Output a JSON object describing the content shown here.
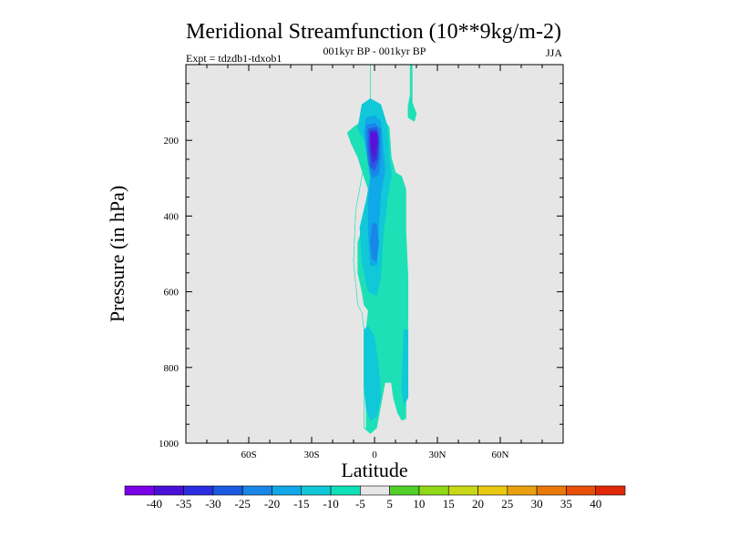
{
  "chart_data": {
    "type": "heatmap",
    "title": "Meridional Streamfunction (10**9kg/m-2)",
    "subtitle": "001kyr BP - 001kyr BP",
    "left_label": "Expt = tdzdb1-tdxob1",
    "right_label": "JJA",
    "xlabel": "Latitude",
    "ylabel": "Pressure (in hPa)",
    "xlim": [
      -90,
      90
    ],
    "ylim": [
      1000,
      0
    ],
    "x_ticks": [
      {
        "value": -60,
        "label": "60S"
      },
      {
        "value": -30,
        "label": "30S"
      },
      {
        "value": 0,
        "label": "0"
      },
      {
        "value": 30,
        "label": "30N"
      },
      {
        "value": 60,
        "label": "60N"
      }
    ],
    "y_ticks": [
      {
        "value": 200,
        "label": "200"
      },
      {
        "value": 400,
        "label": "400"
      },
      {
        "value": 600,
        "label": "600"
      },
      {
        "value": 800,
        "label": "800"
      },
      {
        "value": 1000,
        "label": "1000"
      }
    ],
    "background_color": "#e6e6e6",
    "colorbar": {
      "levels": [
        -40,
        -35,
        -30,
        -25,
        -20,
        -15,
        -10,
        -5,
        5,
        10,
        15,
        20,
        25,
        30,
        35,
        40
      ],
      "labels": [
        "-40",
        "-35",
        "-30",
        "-25",
        "-20",
        "-15",
        "-10",
        "-5",
        "5",
        "10",
        "15",
        "20",
        "25",
        "30",
        "35",
        "40"
      ],
      "colors": [
        "#7a00e8",
        "#4b10d8",
        "#2a2ee0",
        "#1a5ae0",
        "#1a86e8",
        "#10a8e8",
        "#10c8d8",
        "#10e0b8",
        "#e6e6e6",
        "#50d028",
        "#90d818",
        "#c8d818",
        "#e8c810",
        "#e8a010",
        "#e87808",
        "#e85008",
        "#e02808"
      ]
    },
    "regions": [
      {
        "name": "tropical-tongue",
        "level": "-10 to -5",
        "color": "#1de0b6",
        "polygon": [
          [
            -8,
            0
          ],
          [
            -2,
            0
          ],
          [
            -2,
            165
          ],
          [
            -4,
            235
          ],
          [
            -9,
            385
          ],
          [
            -10,
            520
          ],
          [
            -8,
            635
          ],
          [
            -6,
            655
          ],
          [
            -5,
            700
          ],
          [
            -5,
            960
          ],
          [
            -2,
            975
          ],
          [
            1,
            960
          ],
          [
            3,
            900
          ],
          [
            5,
            840
          ],
          [
            8,
            840
          ],
          [
            9,
            880
          ],
          [
            11,
            920
          ],
          [
            13,
            940
          ],
          [
            15,
            935
          ],
          [
            15,
            830
          ],
          [
            16,
            680
          ],
          [
            16,
            560
          ],
          [
            15,
            440
          ],
          [
            15,
            330
          ],
          [
            13,
            295
          ],
          [
            10,
            285
          ],
          [
            8,
            245
          ],
          [
            7,
            165
          ],
          [
            5,
            150
          ],
          [
            2,
            140
          ],
          [
            -2,
            145
          ],
          [
            -6,
            150
          ],
          [
            -10,
            165
          ],
          [
            -13,
            180
          ],
          [
            -11,
            210
          ],
          [
            -8,
            245
          ],
          [
            -6,
            280
          ],
          [
            -3,
            330
          ],
          [
            -1,
            360
          ],
          [
            -3,
            400
          ],
          [
            -6,
            435
          ],
          [
            -8,
            470
          ],
          [
            -8,
            550
          ],
          [
            -6,
            600
          ],
          [
            -5,
            635
          ],
          [
            -3,
            650
          ],
          [
            -4,
            700
          ],
          [
            -4,
            960
          ],
          [
            -5,
            960
          ],
          [
            -5,
            700
          ],
          [
            -6,
            655
          ],
          [
            -8,
            635
          ],
          [
            -10,
            520
          ],
          [
            -9,
            385
          ],
          [
            -4,
            235
          ],
          [
            -2,
            165
          ],
          [
            -2,
            0
          ]
        ]
      },
      {
        "name": "northern-thin-band",
        "level": "-10 to -5",
        "color": "#1de0b6",
        "polygon": [
          [
            17,
            0
          ],
          [
            18,
            0
          ],
          [
            18,
            100
          ],
          [
            20,
            130
          ],
          [
            19,
            150
          ],
          [
            16,
            140
          ],
          [
            16,
            110
          ],
          [
            17,
            80
          ]
        ]
      },
      {
        "name": "upper-cell-outer",
        "level": "-15 to -10",
        "color": "#10c8d8",
        "polygon": [
          [
            -6,
            105
          ],
          [
            -2,
            90
          ],
          [
            3,
            105
          ],
          [
            6,
            160
          ],
          [
            7,
            240
          ],
          [
            8,
            290
          ],
          [
            6,
            360
          ],
          [
            4,
            460
          ],
          [
            3,
            560
          ],
          [
            1,
            610
          ],
          [
            -3,
            600
          ],
          [
            -6,
            520
          ],
          [
            -7,
            430
          ],
          [
            -4,
            360
          ],
          [
            -2,
            300
          ],
          [
            -3,
            260
          ],
          [
            -5,
            200
          ],
          [
            -8,
            170
          ]
        ]
      },
      {
        "name": "lower-cell-outer",
        "level": "-15 to -10",
        "color": "#10c8d8",
        "polygon": [
          [
            -5,
            700
          ],
          [
            -3,
            690
          ],
          [
            0,
            720
          ],
          [
            2,
            800
          ],
          [
            3,
            880
          ],
          [
            1,
            930
          ],
          [
            -2,
            940
          ],
          [
            -4,
            910
          ],
          [
            -5,
            850
          ]
        ]
      },
      {
        "name": "north-lower-cell",
        "level": "-15 to -10",
        "color": "#10c8d8",
        "polygon": [
          [
            14,
            700
          ],
          [
            16,
            700
          ],
          [
            16,
            880
          ],
          [
            14,
            900
          ],
          [
            13,
            860
          ]
        ]
      },
      {
        "name": "upper-cell-mid",
        "level": "-20 to -15",
        "color": "#10a8e8",
        "polygon": [
          [
            -4,
            140
          ],
          [
            0,
            135
          ],
          [
            3,
            150
          ],
          [
            4,
            210
          ],
          [
            5,
            280
          ],
          [
            3,
            340
          ],
          [
            2,
            430
          ],
          [
            1,
            530
          ],
          [
            -2,
            530
          ],
          [
            -3,
            440
          ],
          [
            -3,
            360
          ],
          [
            -2,
            300
          ],
          [
            -3,
            240
          ],
          [
            -5,
            180
          ]
        ]
      },
      {
        "name": "upper-cell-inner",
        "level": "-25 to -20",
        "color": "#1a86e8",
        "polygon": [
          [
            -4,
            160
          ],
          [
            0,
            155
          ],
          [
            3,
            170
          ],
          [
            3,
            240
          ],
          [
            2,
            290
          ],
          [
            -1,
            300
          ],
          [
            -3,
            260
          ],
          [
            -4,
            210
          ]
        ]
      },
      {
        "name": "mid-cell-inner",
        "level": "-25 to -20",
        "color": "#1a86e8",
        "polygon": [
          [
            -1,
            420
          ],
          [
            1,
            420
          ],
          [
            2,
            470
          ],
          [
            1,
            520
          ],
          [
            -1,
            515
          ],
          [
            -2,
            470
          ]
        ]
      },
      {
        "name": "upper-cell-core-1",
        "level": "-30 to -25",
        "color": "#2a5ae0",
        "polygon": [
          [
            -3,
            170
          ],
          [
            1,
            165
          ],
          [
            2,
            190
          ],
          [
            2,
            250
          ],
          [
            0,
            280
          ],
          [
            -2,
            270
          ],
          [
            -3,
            220
          ]
        ]
      },
      {
        "name": "upper-cell-core-2",
        "level": "-35 to -30",
        "color": "#3a30d8",
        "polygon": [
          [
            -2,
            175
          ],
          [
            1,
            175
          ],
          [
            2,
            200
          ],
          [
            1,
            250
          ],
          [
            -1,
            260
          ],
          [
            -2,
            230
          ]
        ]
      },
      {
        "name": "upper-cell-core-3",
        "level": "-40 to -35",
        "color": "#5a10d8",
        "polygon": [
          [
            -2,
            180
          ],
          [
            1,
            180
          ],
          [
            1,
            210
          ],
          [
            0,
            240
          ],
          [
            -1,
            235
          ],
          [
            -2,
            205
          ]
        ]
      }
    ]
  }
}
